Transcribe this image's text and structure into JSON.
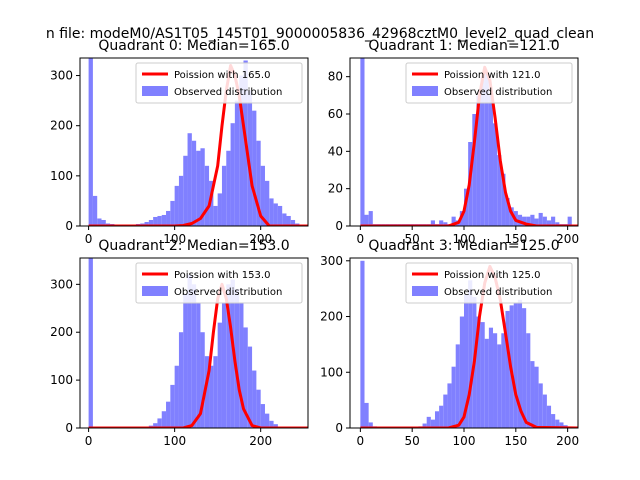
{
  "figure": {
    "suptitle": "n file: modeM0/AS1T05_145T01_9000005836_42968cztM0_level2_quad_clean"
  },
  "colors": {
    "bars": "#8080ff",
    "curve": "#ff0000"
  },
  "chart_data": [
    {
      "type": "bar",
      "title": "Quadrant 0: Median=165.0",
      "xlim": [
        -10,
        255
      ],
      "ylim": [
        0,
        335
      ],
      "xticks": [
        0,
        100,
        200
      ],
      "yticks": [
        0,
        100,
        200,
        300
      ],
      "bin_width": 5,
      "legend": {
        "position": "top-right",
        "entries": [
          "Poission with 165.0",
          "Observed distribution"
        ]
      },
      "series": [
        {
          "name": "Observed distribution",
          "kind": "histogram",
          "x": [
            0,
            5,
            10,
            15,
            20,
            25,
            30,
            35,
            40,
            45,
            50,
            55,
            60,
            65,
            70,
            75,
            80,
            85,
            90,
            95,
            100,
            105,
            110,
            115,
            120,
            125,
            130,
            135,
            140,
            145,
            150,
            155,
            160,
            165,
            170,
            175,
            180,
            185,
            190,
            195,
            200,
            205,
            210,
            215,
            220,
            225,
            230,
            235,
            240,
            245
          ],
          "values": [
            340,
            60,
            15,
            12,
            5,
            4,
            3,
            3,
            3,
            3,
            3,
            4,
            5,
            8,
            12,
            18,
            20,
            22,
            30,
            50,
            80,
            100,
            140,
            185,
            170,
            150,
            155,
            120,
            90,
            40,
            65,
            120,
            150,
            205,
            250,
            300,
            330,
            270,
            230,
            170,
            120,
            90,
            55,
            45,
            40,
            25,
            20,
            12,
            5,
            2
          ]
        },
        {
          "name": "Poission with 165.0",
          "kind": "curve",
          "x": [
            0,
            100,
            110,
            120,
            130,
            140,
            150,
            155,
            160,
            165,
            170,
            175,
            180,
            185,
            190,
            200,
            210,
            255
          ],
          "values": [
            0,
            0,
            1,
            5,
            15,
            40,
            120,
            200,
            270,
            320,
            300,
            260,
            200,
            140,
            80,
            20,
            0,
            0
          ]
        }
      ]
    },
    {
      "type": "bar",
      "title": "Quadrant 1: Median=121.0",
      "xlim": [
        -10,
        210
      ],
      "ylim": [
        0,
        90
      ],
      "xticks": [
        0,
        50,
        100,
        150,
        200
      ],
      "yticks": [
        0,
        20,
        40,
        60,
        80
      ],
      "bin_width": 4,
      "legend": {
        "position": "top-right",
        "entries": [
          "Poission with 121.0",
          "Observed distribution"
        ]
      },
      "series": [
        {
          "name": "Observed distribution",
          "kind": "histogram",
          "x": [
            0,
            4,
            8,
            12,
            16,
            20,
            24,
            28,
            32,
            36,
            40,
            44,
            48,
            52,
            56,
            60,
            64,
            68,
            72,
            76,
            80,
            84,
            88,
            92,
            96,
            100,
            104,
            108,
            112,
            116,
            120,
            124,
            128,
            132,
            136,
            140,
            144,
            148,
            152,
            156,
            160,
            164,
            168,
            172,
            176,
            180,
            184,
            188,
            192,
            196,
            200
          ],
          "values": [
            92,
            6,
            8,
            1,
            1,
            1,
            1,
            1,
            1,
            1,
            1,
            1,
            1,
            1,
            1,
            1,
            1,
            3,
            1,
            3,
            2,
            1,
            5,
            3,
            8,
            20,
            45,
            60,
            70,
            80,
            82,
            70,
            55,
            38,
            28,
            15,
            10,
            8,
            6,
            5,
            5,
            6,
            4,
            7,
            5,
            3,
            5,
            2,
            1,
            1,
            5
          ]
        },
        {
          "name": "Poission with 121.0",
          "kind": "curve",
          "x": [
            0,
            85,
            95,
            100,
            105,
            110,
            115,
            120,
            125,
            130,
            135,
            140,
            145,
            150,
            160,
            170,
            210
          ],
          "values": [
            0,
            0,
            2,
            8,
            22,
            45,
            70,
            85,
            78,
            58,
            35,
            18,
            8,
            3,
            1,
            0,
            0
          ]
        }
      ]
    },
    {
      "type": "bar",
      "title": "Quadrant 2: Median=153.0",
      "xlim": [
        -10,
        255
      ],
      "ylim": [
        0,
        355
      ],
      "xticks": [
        0,
        100,
        200
      ],
      "yticks": [
        0,
        100,
        200,
        300
      ],
      "bin_width": 5,
      "legend": {
        "position": "top-right",
        "entries": [
          "Poission with 153.0",
          "Observed distribution"
        ]
      },
      "series": [
        {
          "name": "Observed distribution",
          "kind": "histogram",
          "x": [
            0,
            5,
            10,
            15,
            20,
            25,
            30,
            35,
            40,
            45,
            50,
            55,
            60,
            65,
            70,
            75,
            80,
            85,
            90,
            95,
            100,
            105,
            110,
            115,
            120,
            125,
            130,
            135,
            140,
            145,
            150,
            155,
            160,
            165,
            170,
            175,
            180,
            185,
            190,
            195,
            200,
            205,
            210,
            215,
            220,
            225,
            230,
            235,
            240,
            245
          ],
          "values": [
            360,
            2,
            1,
            1,
            1,
            1,
            1,
            1,
            1,
            1,
            1,
            1,
            2,
            3,
            5,
            10,
            20,
            35,
            55,
            90,
            130,
            200,
            280,
            320,
            300,
            260,
            200,
            150,
            130,
            150,
            220,
            260,
            300,
            310,
            290,
            260,
            210,
            170,
            120,
            80,
            50,
            30,
            15,
            8,
            3,
            2,
            1,
            1,
            1,
            1
          ]
        },
        {
          "name": "Poission with 153.0",
          "kind": "curve",
          "x": [
            0,
            110,
            120,
            130,
            140,
            145,
            150,
            155,
            160,
            165,
            170,
            175,
            180,
            190,
            200,
            255
          ],
          "values": [
            0,
            0,
            5,
            30,
            120,
            200,
            270,
            300,
            270,
            210,
            140,
            80,
            40,
            5,
            0,
            0
          ]
        }
      ]
    },
    {
      "type": "bar",
      "title": "Quadrant 3: Median=125.0",
      "xlim": [
        -10,
        210
      ],
      "ylim": [
        0,
        305
      ],
      "xticks": [
        0,
        50,
        100,
        150,
        200
      ],
      "yticks": [
        0,
        100,
        200,
        300
      ],
      "bin_width": 4,
      "legend": {
        "position": "top-right",
        "entries": [
          "Poission with 125.0",
          "Observed distribution"
        ]
      },
      "series": [
        {
          "name": "Observed distribution",
          "kind": "histogram",
          "x": [
            0,
            4,
            8,
            12,
            16,
            20,
            24,
            28,
            32,
            36,
            40,
            44,
            48,
            52,
            56,
            60,
            64,
            68,
            72,
            76,
            80,
            84,
            88,
            92,
            96,
            100,
            104,
            108,
            112,
            116,
            120,
            124,
            128,
            132,
            136,
            140,
            144,
            148,
            152,
            156,
            160,
            164,
            168,
            172,
            176,
            180,
            184,
            188,
            192,
            196
          ],
          "values": [
            300,
            45,
            10,
            3,
            2,
            1,
            1,
            1,
            1,
            1,
            1,
            1,
            1,
            1,
            3,
            8,
            20,
            15,
            30,
            40,
            60,
            80,
            110,
            150,
            200,
            240,
            265,
            235,
            200,
            190,
            160,
            180,
            170,
            150,
            170,
            210,
            220,
            225,
            230,
            215,
            170,
            120,
            110,
            80,
            60,
            40,
            25,
            15,
            10,
            5
          ]
        },
        {
          "name": "Poission with 125.0",
          "kind": "curve",
          "x": [
            0,
            85,
            95,
            100,
            105,
            110,
            115,
            120,
            125,
            130,
            135,
            140,
            145,
            150,
            155,
            160,
            170,
            210
          ],
          "values": [
            0,
            0,
            5,
            20,
            60,
            120,
            200,
            260,
            290,
            270,
            230,
            170,
            110,
            60,
            30,
            10,
            1,
            0
          ]
        }
      ]
    }
  ]
}
